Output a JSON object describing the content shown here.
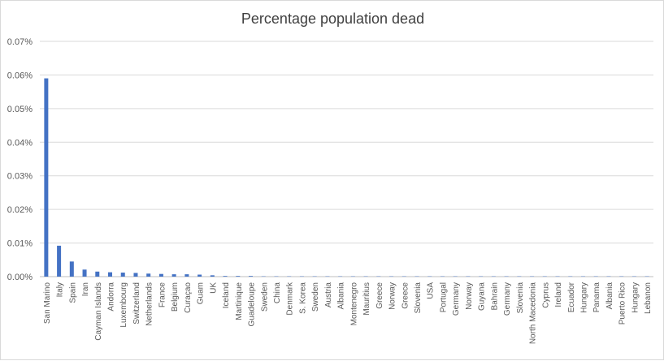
{
  "chart_data": {
    "type": "bar",
    "title": "Percentage population dead",
    "xlabel": "",
    "ylabel": "",
    "ylim": [
      0,
      0.07
    ],
    "y_ticks": [
      "0.00%",
      "0.01%",
      "0.02%",
      "0.03%",
      "0.04%",
      "0.05%",
      "0.06%",
      "0.07%"
    ],
    "grid": true,
    "legend": "none",
    "bar_color": "#4472c4",
    "categories": [
      "San Marino",
      "Italy",
      "Spain",
      "Iran",
      "Cayman Islands",
      "Andorra",
      "Luxembourg",
      "Switzerland",
      "Netherlands",
      "France",
      "Belgium",
      "Curaçao",
      "Guam",
      "UK",
      "Iceland",
      "Martinique",
      "Guadeloupe",
      "Sweden",
      "China",
      "Denmark",
      "S. Korea",
      "Sweden",
      "Austria",
      "Albania",
      "Montenegro",
      "Mauritius",
      "Greece",
      "Norway",
      "Greece",
      "Slovenia",
      "USA",
      "Portugal",
      "Germany",
      "Norway",
      "Guyana",
      "Bahrain",
      "Germany",
      "Slovenia",
      "North Macedonia",
      "Cyprus",
      "Ireland",
      "Ecuador",
      "Hungary",
      "Panama",
      "Albania",
      "Puerto Rico",
      "Hungary",
      "Lebanon"
    ],
    "values": [
      0.059,
      0.0092,
      0.0045,
      0.0021,
      0.0015,
      0.0013,
      0.0012,
      0.0011,
      0.0009,
      0.0008,
      0.0007,
      0.0007,
      0.0006,
      0.0004,
      0.0002,
      0.0002,
      0.0002,
      0.0001,
      0.0001,
      0.0001,
      0.0001,
      0.0001,
      0.0001,
      0.0001,
      0.0001,
      0.0001,
      0.0001,
      0.0001,
      0.0001,
      0.0001,
      0.0001,
      0.0001,
      0.0001,
      0.0001,
      0.0001,
      0.0001,
      0.0001,
      0.0001,
      0.0001,
      0.0001,
      0.0001,
      0.0001,
      0.0001,
      0.0001,
      0.0001,
      0.0001,
      0.0001,
      0.0001
    ]
  }
}
